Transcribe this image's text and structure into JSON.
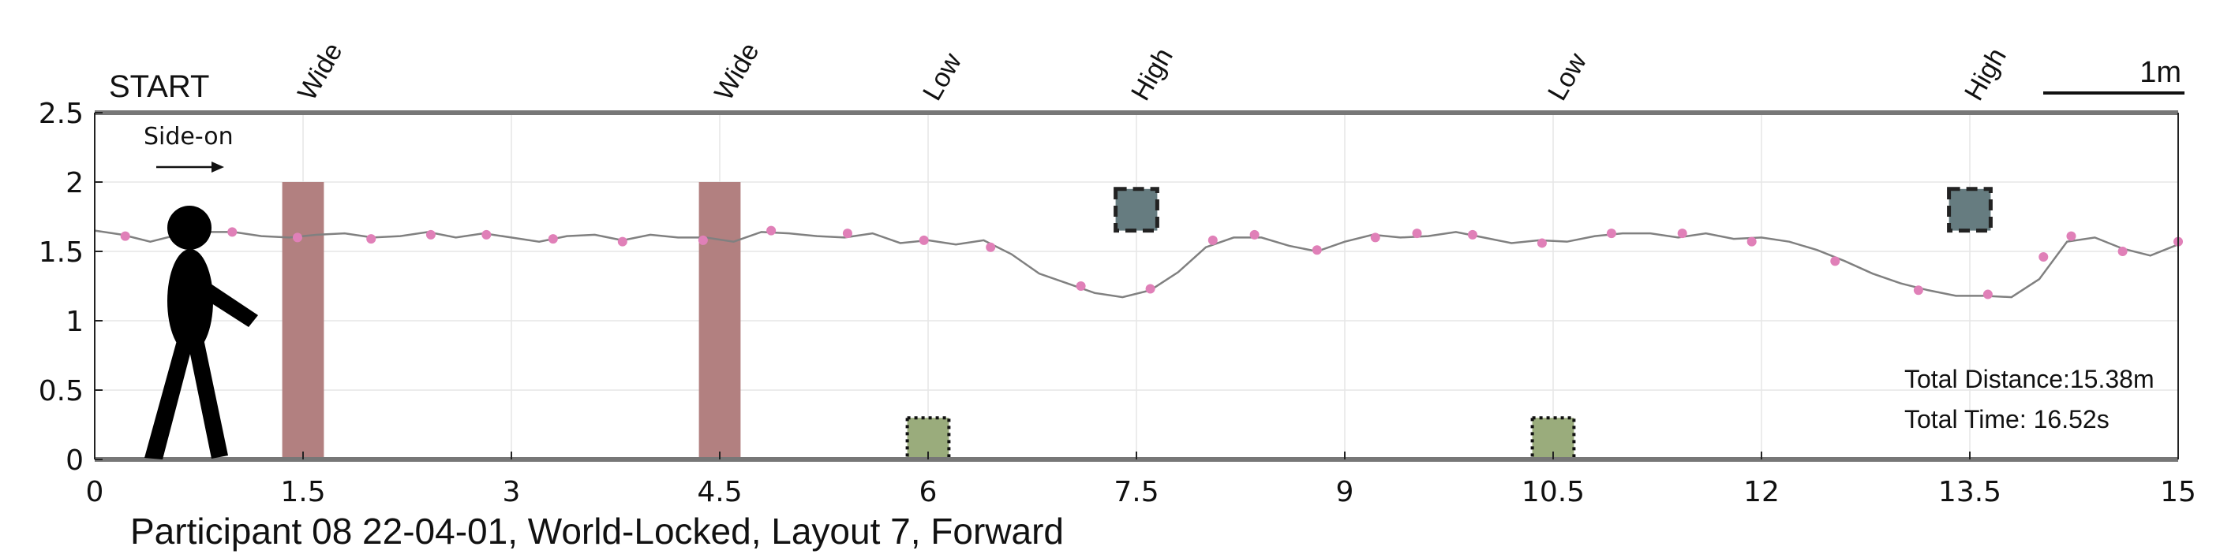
{
  "chart_data": {
    "type": "line",
    "title": "Participant 08 22-04-01, World-Locked, Layout 7, Forward",
    "xlim": [
      0,
      15
    ],
    "ylim": [
      0,
      2.5
    ],
    "x_ticks": [
      "0",
      "1.5",
      "3",
      "4.5",
      "6",
      "7.5",
      "9",
      "10.5",
      "12",
      "13.5",
      "15"
    ],
    "y_ticks": [
      "0",
      "0.5",
      "1",
      "1.5",
      "2",
      "2.5"
    ],
    "x_tick_values": [
      0,
      1.5,
      3,
      4.5,
      6,
      7.5,
      9,
      10.5,
      12,
      13.5,
      15
    ],
    "y_tick_values": [
      0,
      0.5,
      1,
      1.5,
      2,
      2.5
    ],
    "grid": true,
    "start_label": "START",
    "direction_label": "Side-on",
    "scale_bar_label": "1m",
    "scale_bar_length": 1,
    "obstacles": [
      {
        "label": "Wide",
        "type": "wide",
        "x": 1.5,
        "y0": 0,
        "y1": 2.0,
        "width": 0.3,
        "color": "#b28080"
      },
      {
        "label": "Wide",
        "type": "wide",
        "x": 4.5,
        "y0": 0,
        "y1": 2.0,
        "width": 0.3,
        "color": "#b28080"
      },
      {
        "label": "Low",
        "type": "low",
        "x": 6.0,
        "y0": 0,
        "y1": 0.3,
        "width": 0.3,
        "color": "#9aac7c"
      },
      {
        "label": "High",
        "type": "high",
        "x": 7.5,
        "y0": 1.65,
        "y1": 1.95,
        "width": 0.3,
        "color": "#667c80"
      },
      {
        "label": "Low",
        "type": "low",
        "x": 10.5,
        "y0": 0,
        "y1": 0.3,
        "width": 0.3,
        "color": "#9aac7c"
      },
      {
        "label": "High",
        "type": "high",
        "x": 13.5,
        "y0": 1.65,
        "y1": 1.95,
        "width": 0.3,
        "color": "#667c80"
      }
    ],
    "series": [
      {
        "color": "#808080",
        "marker_color": "#e080b8",
        "x": [
          0,
          0.2,
          0.4,
          0.6,
          0.8,
          1.0,
          1.2,
          1.4,
          1.6,
          1.8,
          2.0,
          2.2,
          2.4,
          2.6,
          2.8,
          3.0,
          3.2,
          3.4,
          3.6,
          3.8,
          4.0,
          4.2,
          4.4,
          4.6,
          4.8,
          5.0,
          5.2,
          5.4,
          5.6,
          5.8,
          6.0,
          6.2,
          6.4,
          6.6,
          6.8,
          7.0,
          7.2,
          7.4,
          7.6,
          7.8,
          8.0,
          8.2,
          8.4,
          8.6,
          8.8,
          9.0,
          9.2,
          9.4,
          9.6,
          9.8,
          10.0,
          10.2,
          10.4,
          10.6,
          10.8,
          11.0,
          11.2,
          11.4,
          11.6,
          11.8,
          12.0,
          12.2,
          12.4,
          12.6,
          12.8,
          13.0,
          13.2,
          13.4,
          13.6,
          13.8,
          14.0,
          14.2,
          14.4,
          14.6,
          14.8,
          15.0
        ],
        "y": [
          1.65,
          1.62,
          1.57,
          1.62,
          1.64,
          1.64,
          1.61,
          1.6,
          1.62,
          1.63,
          1.6,
          1.61,
          1.64,
          1.6,
          1.63,
          1.6,
          1.57,
          1.61,
          1.62,
          1.58,
          1.62,
          1.6,
          1.6,
          1.57,
          1.64,
          1.63,
          1.61,
          1.6,
          1.63,
          1.56,
          1.58,
          1.55,
          1.58,
          1.48,
          1.34,
          1.27,
          1.2,
          1.17,
          1.22,
          1.35,
          1.53,
          1.6,
          1.6,
          1.54,
          1.5,
          1.57,
          1.62,
          1.6,
          1.61,
          1.64,
          1.6,
          1.56,
          1.58,
          1.57,
          1.61,
          1.63,
          1.63,
          1.6,
          1.63,
          1.59,
          1.6,
          1.57,
          1.51,
          1.43,
          1.34,
          1.27,
          1.22,
          1.18,
          1.18,
          1.17,
          1.3,
          1.57,
          1.6,
          1.52,
          1.47,
          1.55
        ],
        "marker_x": [
          0.22,
          0.99,
          1.46,
          1.99,
          2.42,
          2.82,
          3.3,
          3.8,
          4.38,
          4.87,
          5.42,
          5.97,
          6.45,
          7.1,
          7.6,
          8.05,
          8.35,
          8.8,
          9.22,
          9.52,
          9.92,
          10.42,
          10.92,
          11.43,
          11.93,
          12.53,
          13.13,
          13.63,
          14.03,
          14.23,
          14.6,
          15.0
        ],
        "marker_y": [
          1.61,
          1.64,
          1.6,
          1.59,
          1.62,
          1.62,
          1.59,
          1.57,
          1.58,
          1.65,
          1.63,
          1.58,
          1.53,
          1.25,
          1.23,
          1.58,
          1.62,
          1.51,
          1.6,
          1.63,
          1.62,
          1.56,
          1.63,
          1.63,
          1.57,
          1.43,
          1.22,
          1.19,
          1.46,
          1.61,
          1.5,
          1.57
        ]
      }
    ],
    "annotations": [
      {
        "text": "Total Distance:15.38m"
      },
      {
        "text": "Total Time: 16.52s"
      }
    ]
  }
}
